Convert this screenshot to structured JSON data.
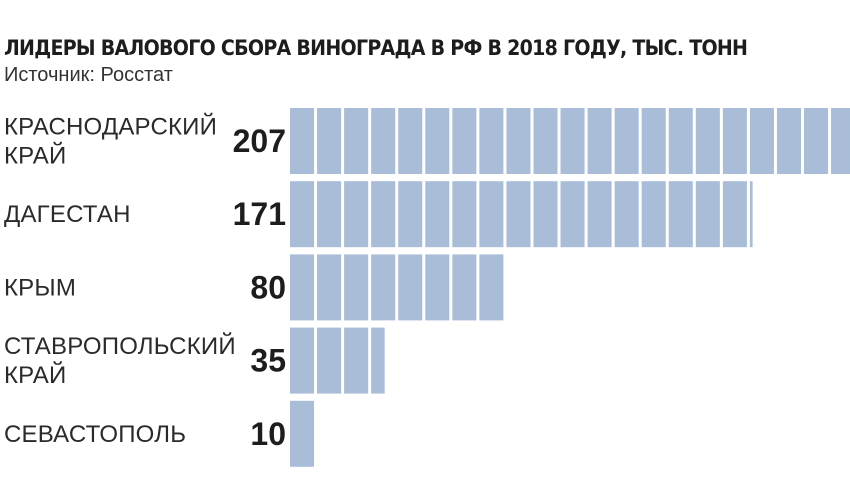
{
  "chart_data": {
    "type": "bar",
    "orientation": "horizontal",
    "title": "ЛИДЕРЫ ВАЛОВОГО СБОРА ВИНОГРАДА В РФ В 2018 ГОДУ, ТЫС. ТОНН",
    "subtitle": "Источник: Росстат",
    "categories": [
      [
        "КРАСНОДАРСКИЙ",
        "КРАЙ"
      ],
      [
        "ДАГЕСТАН"
      ],
      [
        "КРЫМ"
      ],
      [
        "СТАВРОПОЛЬСКИЙ",
        "КРАЙ"
      ],
      [
        "СЕВАСТОПОЛЬ"
      ]
    ],
    "values": [
      207,
      171,
      80,
      35,
      10
    ],
    "value_labels": [
      "207",
      "171",
      "80",
      "35",
      "10"
    ],
    "unit_step": 10,
    "bar_color": "#a9bdd8",
    "grid": false,
    "legend": "none"
  }
}
